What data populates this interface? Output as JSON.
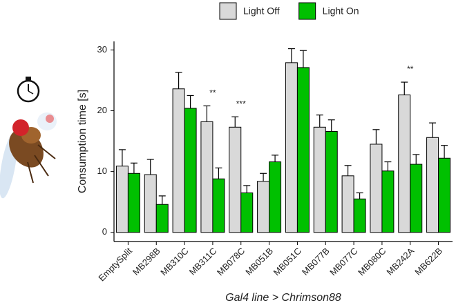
{
  "chart_data": {
    "type": "bar",
    "y_label": "Consumption time [s]",
    "x_label": "Gal4 line > Chrimson88",
    "categories": [
      "EmptySplit",
      "MB298B",
      "MB310C",
      "MB311C",
      "MB078C",
      "MB051B",
      "MB051C",
      "MB077B",
      "MB077C",
      "MB080C",
      "MB242A",
      "MB622B"
    ],
    "series": [
      {
        "name": "Light Off",
        "color": "#d9d9d9",
        "values": [
          10.9,
          9.5,
          23.6,
          18.2,
          17.3,
          8.4,
          27.9,
          17.3,
          9.3,
          14.5,
          22.6,
          15.6
        ],
        "errors": [
          2.7,
          2.5,
          2.7,
          2.6,
          1.7,
          1.3,
          2.3,
          2.0,
          1.7,
          2.4,
          2.1,
          2.4
        ]
      },
      {
        "name": "Light On",
        "color": "#00c000",
        "values": [
          9.7,
          4.6,
          20.4,
          8.8,
          6.5,
          11.6,
          27.1,
          16.6,
          5.5,
          10.1,
          11.2,
          12.2
        ],
        "errors": [
          1.7,
          1.4,
          2.1,
          1.8,
          1.2,
          1.1,
          2.8,
          1.9,
          1.0,
          1.5,
          1.6,
          2.1
        ]
      }
    ],
    "annotations": [
      {
        "category": "MB311C",
        "text": "**"
      },
      {
        "category": "MB078C",
        "text": "***"
      },
      {
        "category": "MB242A",
        "text": "**"
      }
    ],
    "ylim": [
      -1.5,
      31.4
    ],
    "yticks": [
      0,
      10,
      20,
      30
    ],
    "legend": "top"
  }
}
